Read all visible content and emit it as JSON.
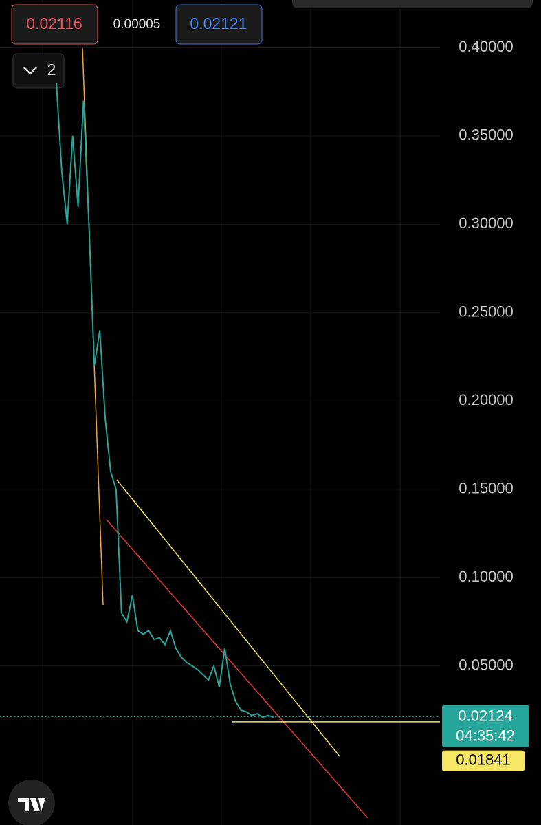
{
  "toolbar": {
    "sell": "0.02116",
    "spread": "0.00005",
    "buy": "0.02121",
    "collapse_count": "2"
  },
  "chart_data": {
    "type": "line",
    "color": "#26a69a",
    "values": [
      0.38,
      0.33,
      0.3,
      0.35,
      0.31,
      0.37,
      0.3,
      0.22,
      0.24,
      0.19,
      0.16,
      0.15,
      0.08,
      0.075,
      0.09,
      0.07,
      0.068,
      0.07,
      0.065,
      0.066,
      0.062,
      0.07,
      0.06,
      0.055,
      0.052,
      0.05,
      0.048,
      0.045,
      0.042,
      0.05,
      0.038,
      0.06,
      0.04,
      0.03,
      0.025,
      0.024,
      0.022,
      0.023,
      0.021,
      0.022,
      0.021
    ],
    "ylim": [
      -0.04,
      0.427
    ],
    "yticks": [
      {
        "value": 0.05,
        "label": "0.05000"
      },
      {
        "value": 0.1,
        "label": "0.10000"
      },
      {
        "value": 0.15,
        "label": "0.15000"
      },
      {
        "value": 0.2,
        "label": "0.20000"
      },
      {
        "value": 0.25,
        "label": "0.25000"
      },
      {
        "value": 0.3,
        "label": "0.30000"
      },
      {
        "value": 0.35,
        "label": "0.35000"
      },
      {
        "value": 0.4,
        "label": "0.40000"
      }
    ],
    "grid": true,
    "current_price": {
      "value": 0.02124,
      "label": "0.02124"
    },
    "countdown": "04:35:42",
    "alert_price": {
      "value": 0.01841,
      "label": "0.01841"
    }
  }
}
